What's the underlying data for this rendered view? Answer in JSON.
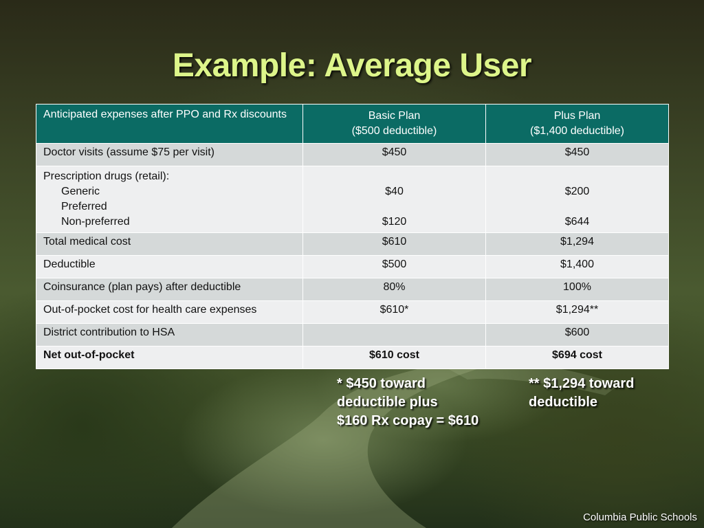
{
  "slide": {
    "title": "Example: Average User",
    "footer": "Columbia Public Schools"
  },
  "table": {
    "headers": {
      "label": "Anticipated expenses after PPO and Rx discounts",
      "basic": [
        "Basic Plan",
        "($500 deductible)"
      ],
      "plus": [
        "Plus Plan",
        "($1,400 deductible)"
      ]
    },
    "rows": {
      "doctor": {
        "label": "Doctor visits (assume $75 per visit)",
        "basic": "$450",
        "plus": "$450"
      },
      "rx": {
        "label": "Prescription drugs (retail):",
        "sub_labels": [
          "Generic",
          "Preferred",
          "Non-preferred"
        ],
        "basic": [
          "",
          "$40",
          "",
          "$120"
        ],
        "plus": [
          "",
          "$200",
          "",
          "$644"
        ]
      },
      "total": {
        "label": "Total medical cost",
        "basic": "$610",
        "plus": "$1,294"
      },
      "deductible": {
        "label": "Deductible",
        "basic": "$500",
        "plus": "$1,400"
      },
      "coinsurance": {
        "label": "Coinsurance (plan pays) after deductible",
        "basic": "80%",
        "plus": "100%"
      },
      "oop": {
        "label": "Out-of-pocket cost for health care expenses",
        "basic": "$610*",
        "plus": "$1,294**"
      },
      "hsa": {
        "label": "District contribution to HSA",
        "basic": "",
        "plus": "$600"
      },
      "net": {
        "label": "Net out-of-pocket",
        "basic": "$610 cost",
        "plus": "$694 cost"
      }
    }
  },
  "notes": {
    "basic": [
      "* $450 toward",
      "deductible plus",
      "$160 Rx copay = $610"
    ],
    "plus": [
      "** $1,294 toward",
      "deductible"
    ]
  }
}
